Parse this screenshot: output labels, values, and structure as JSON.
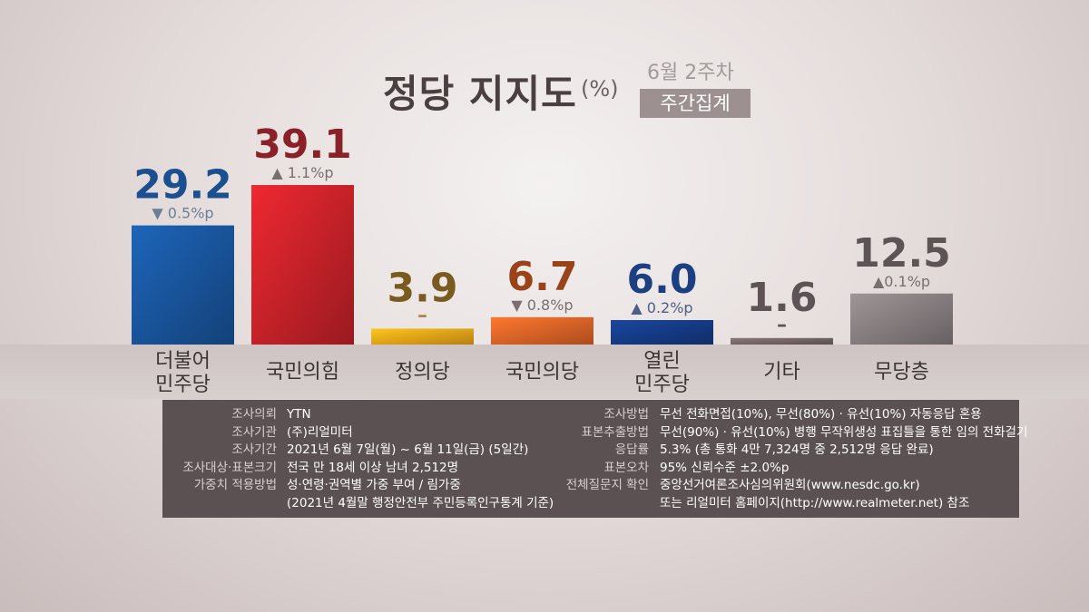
{
  "header": {
    "title": "정당 지지도",
    "unit": "(%)",
    "period": "6월 2주차",
    "badge": "주간집계"
  },
  "colors": {
    "더불어민주당": "#1a5aa6",
    "국민의힘": "#d5242c",
    "정의당": "#ffb11a",
    "국민의당": "#ef6a2a",
    "열린민주당": "#163f8f",
    "기타": "#7a6c6e",
    "무당층": "#8f8688"
  },
  "chart_data": {
    "type": "bar",
    "title": "정당 지지도",
    "unit": "(%)",
    "categories": [
      {
        "label_lines": [
          "더불어",
          "민주당"
        ],
        "value": 29.2,
        "value_label": "29.2",
        "change": "▼ 0.5%p",
        "color": "#1a5aa6",
        "text_color": "#1b4f90",
        "change_color": "#6b7f99"
      },
      {
        "label_lines": [
          "국민의힘"
        ],
        "value": 39.1,
        "value_label": "39.1",
        "change": "▲ 1.1%p",
        "color": "#d5242c",
        "text_color": "#8a2128",
        "change_color": "#7a6f6f"
      },
      {
        "label_lines": [
          "정의당"
        ],
        "value": 3.9,
        "value_label": "3.9",
        "change": "–",
        "color": "#ffb11a",
        "text_color": "#7a5a1e",
        "change_color": "#a88a50"
      },
      {
        "label_lines": [
          "국민의당"
        ],
        "value": 6.7,
        "value_label": "6.7",
        "change": "▼ 0.8%p",
        "color": "#ef6a2a",
        "text_color": "#9a4319",
        "change_color": "#7a6f6f"
      },
      {
        "label_lines": [
          "열린",
          "민주당"
        ],
        "value": 6.0,
        "value_label": "6.0",
        "change": "▲ 0.2%p",
        "color": "#163f8f",
        "text_color": "#1b3f80",
        "change_color": "#4b5f8a"
      },
      {
        "label_lines": [
          "기타"
        ],
        "value": 1.6,
        "value_label": "1.6",
        "change": "–",
        "color": "#7a6c6e",
        "text_color": "#5e5355",
        "change_color": "#5e5355"
      },
      {
        "label_lines": [
          "무당층"
        ],
        "value": 12.5,
        "value_label": "12.5",
        "change": "▲0.1%p",
        "color": "#8f8688",
        "text_color": "#5e5355",
        "change_color": "#7a6f6f"
      }
    ],
    "values": [
      29.2,
      39.1,
      3.9,
      6.7,
      6.0,
      1.6,
      12.5
    ],
    "ylim": [
      0,
      40
    ]
  },
  "survey": {
    "left": [
      {
        "key": "조사의뢰",
        "value": "YTN"
      },
      {
        "key": "조사기관",
        "value": "(주)리얼미터"
      },
      {
        "key": "조사기간",
        "value": "2021년 6월 7일(월) ~ 6월 11일(금) (5일간)"
      },
      {
        "key": "조사대상·표본크기",
        "value": "전국 만 18세 이상 남녀 2,512명"
      },
      {
        "key": "가중치 적용방법",
        "value": "성·연령·권역별 가중 부여 / 림가중"
      },
      {
        "key": "",
        "value": "(2021년 4월말 행정안전부 주민등록인구통계 기준)"
      }
    ],
    "right": [
      {
        "key": "조사방법",
        "value": "무선 전화면접(10%), 무선(80%) · 유선(10%) 자동응답 혼용"
      },
      {
        "key": "표본추출방법",
        "value": "무선(90%) · 유선(10%) 병행 무작위생성 표집틀을 통한 임의 전화걸기"
      },
      {
        "key": "응답률",
        "value": "5.3% (총 통화 4만 7,324명 중 2,512명 응답 완료)"
      },
      {
        "key": "표본오차",
        "value": "95% 신뢰수준 ±2.0%p"
      },
      {
        "key": "전체질문지 확인",
        "value": "중앙선거여론조사심의위원회(www.nesdc.go.kr)"
      },
      {
        "key": "",
        "value": "또는 리얼미터 홈페이지(http://www.realmeter.net) 참조"
      }
    ]
  }
}
